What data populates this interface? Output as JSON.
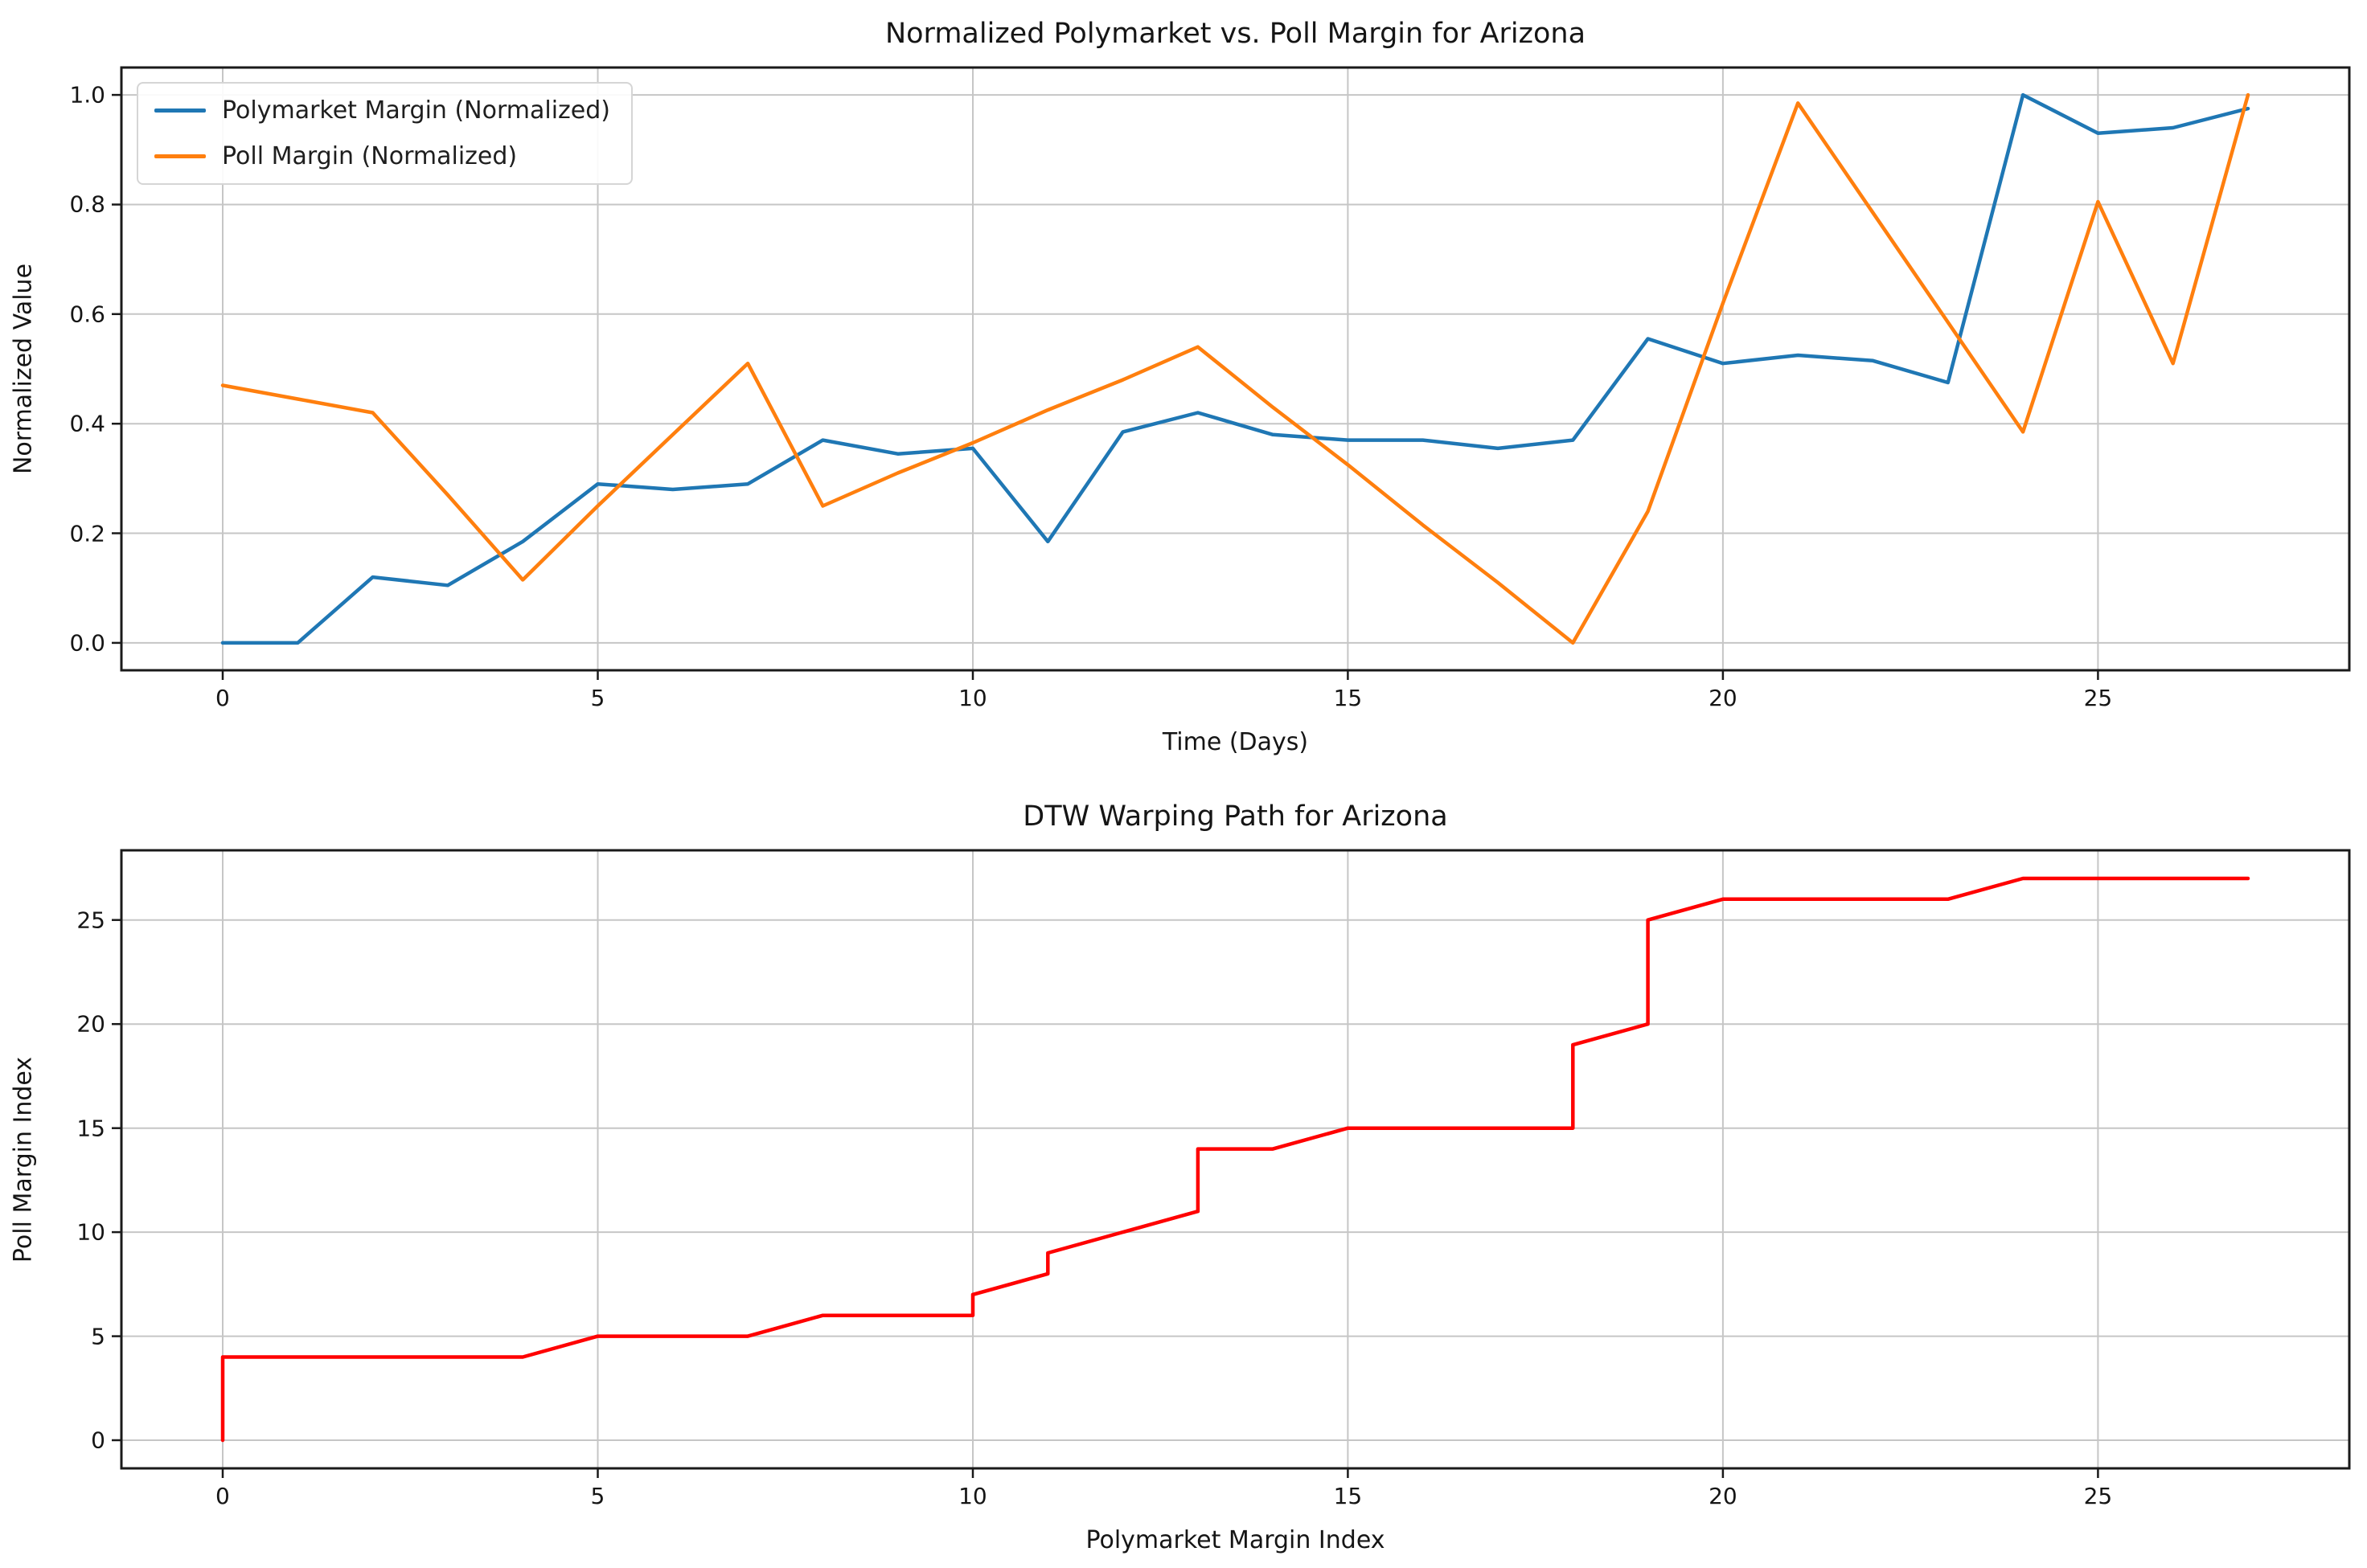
{
  "figure": {
    "background": "#ffffff",
    "grid_color": "#c6c6c6",
    "spine_color": "#1a1a1a",
    "text_color": "#151515"
  },
  "chart_data": [
    {
      "type": "line",
      "title": "Normalized Polymarket vs. Poll Margin for Arizona",
      "xlabel": "Time (Days)",
      "ylabel": "Normalized Value",
      "grid": true,
      "legend_position": "upper left",
      "xlim": [
        -1.35,
        28.35
      ],
      "ylim": [
        -0.05,
        1.05
      ],
      "x_ticks": [
        0,
        5,
        10,
        15,
        20,
        25
      ],
      "x_tick_labels": [
        "0",
        "5",
        "10",
        "15",
        "20",
        "25"
      ],
      "y_ticks": [
        0.0,
        0.2,
        0.4,
        0.6,
        0.8,
        1.0
      ],
      "y_tick_labels": [
        "0.0",
        "0.2",
        "0.4",
        "0.6",
        "0.8",
        "1.0"
      ],
      "x": [
        0,
        1,
        2,
        3,
        4,
        5,
        6,
        7,
        8,
        9,
        10,
        11,
        12,
        13,
        14,
        15,
        16,
        17,
        18,
        19,
        20,
        21,
        22,
        23,
        24,
        25,
        26,
        27
      ],
      "series": [
        {
          "name": "Polymarket Margin (Normalized)",
          "color": "#1f77b4",
          "values": [
            0.0,
            0.0,
            0.12,
            0.105,
            0.185,
            0.29,
            0.28,
            0.29,
            0.37,
            0.345,
            0.355,
            0.185,
            0.385,
            0.42,
            0.38,
            0.37,
            0.37,
            0.355,
            0.37,
            0.555,
            0.51,
            0.525,
            0.515,
            0.475,
            1.0,
            0.93,
            0.94,
            0.975
          ]
        },
        {
          "name": "Poll Margin (Normalized)",
          "color": "#ff7f0e",
          "values": [
            0.47,
            0.445,
            0.42,
            0.27,
            0.115,
            0.25,
            0.38,
            0.51,
            0.25,
            0.31,
            0.365,
            0.425,
            0.48,
            0.54,
            0.43,
            0.325,
            0.215,
            0.11,
            0.0,
            0.24,
            0.62,
            0.985,
            0.785,
            0.585,
            0.385,
            0.805,
            0.51,
            1.0
          ]
        }
      ]
    },
    {
      "type": "line",
      "title": "DTW Warping Path for Arizona",
      "xlabel": "Polymarket Margin Index",
      "ylabel": "Poll Margin Index",
      "grid": true,
      "xlim": [
        -1.35,
        28.35
      ],
      "ylim": [
        -1.35,
        28.35
      ],
      "x_ticks": [
        0,
        5,
        10,
        15,
        20,
        25
      ],
      "x_tick_labels": [
        "0",
        "5",
        "10",
        "15",
        "20",
        "25"
      ],
      "y_ticks": [
        0,
        5,
        10,
        15,
        20,
        25
      ],
      "y_tick_labels": [
        "0",
        "5",
        "10",
        "15",
        "20",
        "25"
      ],
      "series": [
        {
          "name": "DTW warping path",
          "color": "#ff0000",
          "x": [
            0,
            0,
            4,
            5,
            7,
            8,
            10,
            10,
            11,
            11,
            13,
            13,
            14,
            15,
            18,
            18,
            19,
            19,
            20,
            23,
            24,
            27
          ],
          "y": [
            0,
            4,
            4,
            5,
            5,
            6,
            6,
            7,
            8,
            9,
            11,
            14,
            14,
            15,
            15,
            19,
            20,
            25,
            26,
            26,
            27,
            27
          ]
        }
      ]
    }
  ]
}
